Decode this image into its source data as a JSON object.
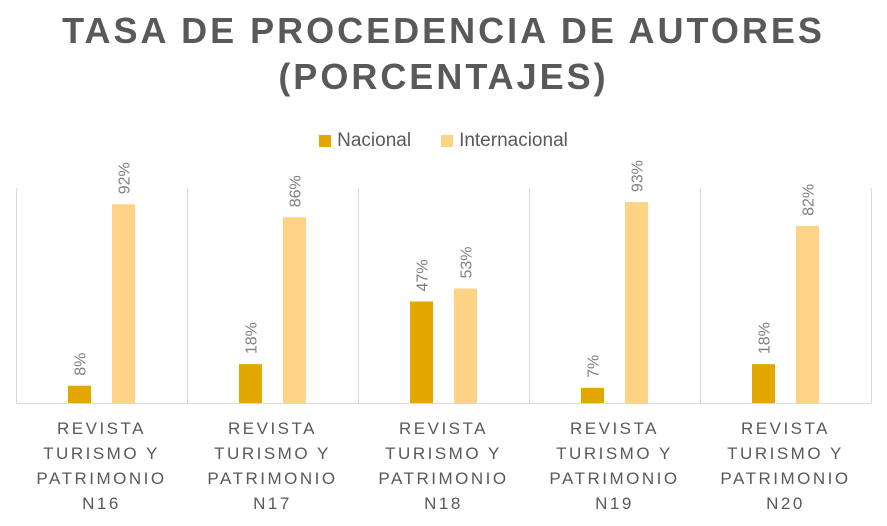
{
  "title_line1": "TASA DE PROCEDENCIA DE AUTORES",
  "title_line2": "(PORCENTAJES)",
  "colors": {
    "nacional": "#E2A800",
    "internacional": "#FFD386",
    "grid": "#d9d9d9",
    "text": "#595959"
  },
  "chart_data": {
    "type": "bar",
    "title": "TASA DE PROCEDENCIA DE AUTORES (PORCENTAJES)",
    "categories": [
      [
        "REVISTA",
        "TURISMO Y",
        "PATRIMONIO",
        "N16"
      ],
      [
        "REVISTA",
        "TURISMO Y",
        "PATRIMONIO",
        "N17"
      ],
      [
        "REVISTA",
        "TURISMO Y",
        "PATRIMONIO",
        "N18"
      ],
      [
        "REVISTA",
        "TURISMO Y",
        "PATRIMONIO",
        "N19"
      ],
      [
        "REVISTA",
        "TURISMO Y",
        "PATRIMONIO",
        "N20"
      ]
    ],
    "series": [
      {
        "name": "Nacional",
        "values": [
          8,
          18,
          47,
          7,
          18
        ],
        "labels": [
          "8%",
          "18%",
          "47%",
          "7%",
          "18%"
        ]
      },
      {
        "name": "Internacional",
        "values": [
          92,
          86,
          53,
          93,
          82
        ],
        "labels": [
          "92%",
          "86%",
          "53%",
          "93%",
          "82%"
        ]
      }
    ],
    "ylim": [
      0,
      100
    ],
    "legend": "top-center",
    "grid": "vertical category separators"
  }
}
